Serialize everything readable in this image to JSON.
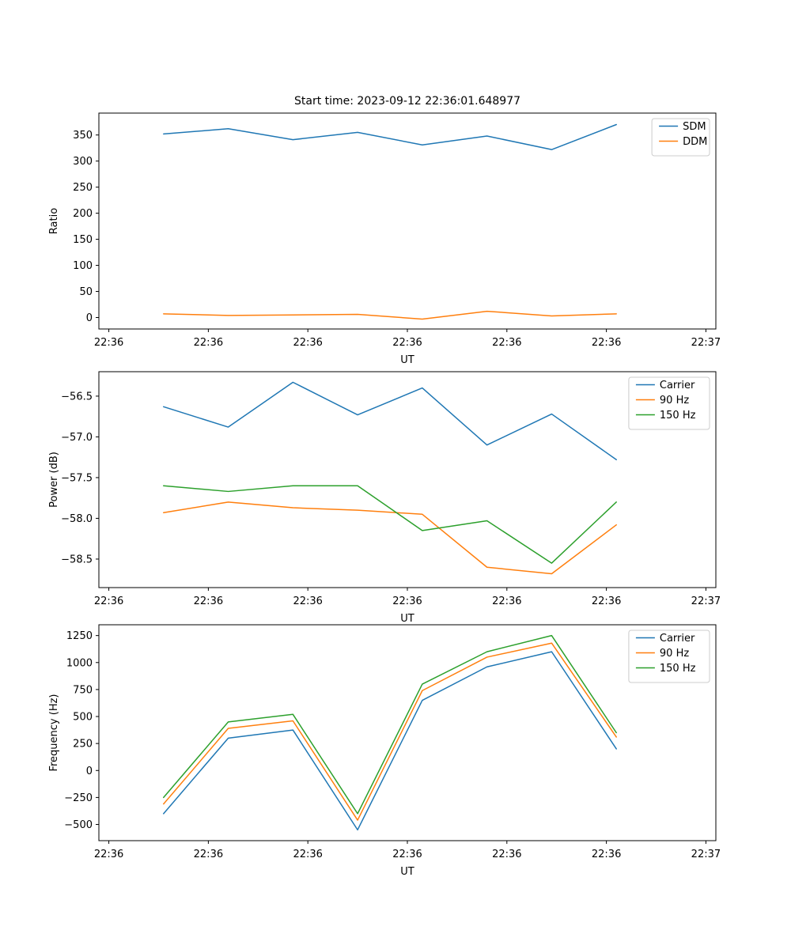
{
  "figure": {
    "title": "Start time: 2023-09-12 22:36:01.648977",
    "background": "#ffffff",
    "text_color": "#000000"
  },
  "colors": {
    "blue": "#1f77b4",
    "orange": "#ff7f0e",
    "green": "#2ca02c"
  },
  "chart_data": [
    {
      "type": "line",
      "name": "ratio",
      "title": "Start time: 2023-09-12 22:36:01.648977",
      "xlabel": "UT",
      "ylabel": "Ratio",
      "xlim": [
        -1,
        61
      ],
      "xticks": [
        0,
        10,
        20,
        30,
        40,
        50,
        60
      ],
      "xtick_labels": [
        "22:36",
        "22:36",
        "22:36",
        "22:36",
        "22:36",
        "22:36",
        "22:37"
      ],
      "ylim": [
        -22,
        392
      ],
      "yticks": [
        0,
        50,
        100,
        150,
        200,
        250,
        300,
        350
      ],
      "ytick_labels": [
        "0",
        "50",
        "100",
        "150",
        "200",
        "250",
        "300",
        "350"
      ],
      "x": [
        5.5,
        12,
        18.5,
        25,
        31.5,
        38,
        44.5,
        51
      ],
      "grid": false,
      "legend_position": "upper right",
      "series": [
        {
          "name": "SDM",
          "color": "#1f77b4",
          "values": [
            352,
            362,
            341,
            355,
            331,
            348,
            322,
            370
          ]
        },
        {
          "name": "DDM",
          "color": "#ff7f0e",
          "values": [
            7,
            4,
            5,
            6,
            -3,
            12,
            3,
            7
          ]
        }
      ]
    },
    {
      "type": "line",
      "name": "power",
      "title": "",
      "xlabel": "UT",
      "ylabel": "Power (dB)",
      "xlim": [
        -1,
        61
      ],
      "xticks": [
        0,
        10,
        20,
        30,
        40,
        50,
        60
      ],
      "xtick_labels": [
        "22:36",
        "22:36",
        "22:36",
        "22:36",
        "22:36",
        "22:36",
        "22:37"
      ],
      "ylim": [
        -58.85,
        -56.2
      ],
      "yticks": [
        -58.5,
        -58.0,
        -57.5,
        -57.0,
        -56.5
      ],
      "ytick_labels": [
        "−58.5",
        "−58.0",
        "−57.5",
        "−57.0",
        "−56.5"
      ],
      "x": [
        5.5,
        12,
        18.5,
        25,
        31.5,
        38,
        44.5,
        51
      ],
      "grid": false,
      "legend_position": "upper right",
      "series": [
        {
          "name": "Carrier",
          "color": "#1f77b4",
          "values": [
            -56.63,
            -56.88,
            -56.33,
            -56.73,
            -56.4,
            -57.1,
            -56.72,
            -57.28
          ]
        },
        {
          "name": "90 Hz",
          "color": "#ff7f0e",
          "values": [
            -57.93,
            -57.8,
            -57.87,
            -57.9,
            -57.95,
            -58.6,
            -58.68,
            -58.08
          ]
        },
        {
          "name": "150 Hz",
          "color": "#2ca02c",
          "values": [
            -57.6,
            -57.67,
            -57.6,
            -57.6,
            -58.15,
            -58.03,
            -58.55,
            -57.8
          ]
        }
      ]
    },
    {
      "type": "line",
      "name": "frequency",
      "title": "",
      "xlabel": "UT",
      "ylabel": "Frequency (Hz)",
      "xlim": [
        -1,
        61
      ],
      "xticks": [
        0,
        10,
        20,
        30,
        40,
        50,
        60
      ],
      "xtick_labels": [
        "22:36",
        "22:36",
        "22:36",
        "22:36",
        "22:36",
        "22:36",
        "22:37"
      ],
      "ylim": [
        -650,
        1350
      ],
      "yticks": [
        -500,
        -250,
        0,
        250,
        500,
        750,
        1000,
        1250
      ],
      "ytick_labels": [
        "−500",
        "−250",
        "0",
        "250",
        "500",
        "750",
        "1000",
        "1250"
      ],
      "x": [
        5.5,
        12,
        18.5,
        25,
        31.5,
        38,
        44.5,
        51
      ],
      "grid": false,
      "legend_position": "upper right",
      "series": [
        {
          "name": "Carrier",
          "color": "#1f77b4",
          "values": [
            -400,
            300,
            375,
            -550,
            650,
            960,
            1100,
            200
          ]
        },
        {
          "name": "90 Hz",
          "color": "#ff7f0e",
          "values": [
            -310,
            390,
            460,
            -460,
            740,
            1050,
            1180,
            310
          ]
        },
        {
          "name": "150 Hz",
          "color": "#2ca02c",
          "values": [
            -250,
            450,
            520,
            -400,
            800,
            1100,
            1250,
            350
          ]
        }
      ]
    }
  ]
}
